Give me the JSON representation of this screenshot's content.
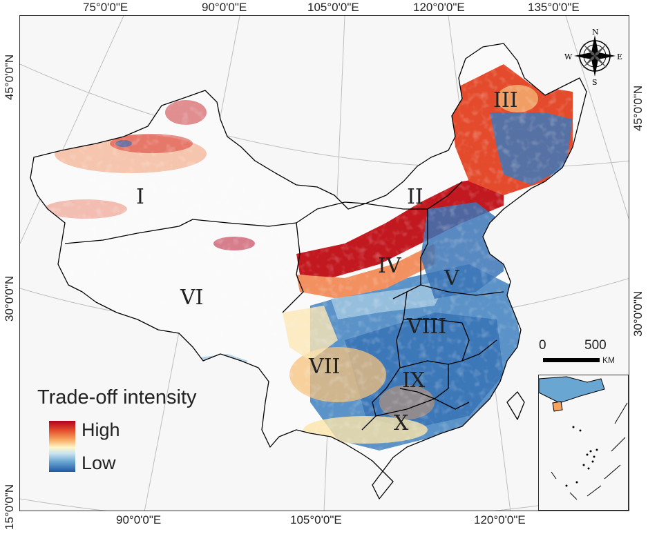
{
  "map": {
    "coordinate_labels": {
      "top": [
        "75°0'0\"E",
        "90°0'0\"E",
        "105°0'0\"E",
        "120°0'0\"E",
        "135°0'0\"E"
      ],
      "bottom": [
        "90°0'0\"E",
        "105°0'0\"E",
        "120°0'0\"E"
      ],
      "left": [
        "45°0'0\"N",
        "30°0'0\"N",
        "15°0'0\"N"
      ],
      "right": [
        "45°0'0\"N",
        "30°0'0\"N"
      ]
    },
    "regions": [
      "I",
      "II",
      "III",
      "IV",
      "V",
      "VI",
      "VII",
      "VIII",
      "IX",
      "X"
    ],
    "legend": {
      "title": "Trade-off intensity",
      "high_label": "High",
      "low_label": "Low",
      "colors": [
        "#b3001b",
        "#e34a2c",
        "#f7a35c",
        "#fff6c8",
        "#c9e3f0",
        "#6aa6d2",
        "#1f57a3"
      ]
    },
    "scale_bar": {
      "start": "0",
      "end": "500",
      "unit": "KM"
    },
    "compass": {
      "north": "N",
      "south": "S",
      "east": "E",
      "west": "W",
      "icon": "compass-rose-icon"
    },
    "border_color": "#000000",
    "background_color": "#f7f7f7"
  }
}
